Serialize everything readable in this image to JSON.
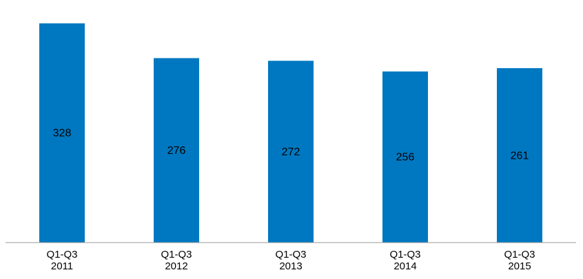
{
  "chart_data": {
    "type": "bar",
    "categories": [
      "Q1-Q3\n2011",
      "Q1-Q3\n2012",
      "Q1-Q3\n2013",
      "Q1-Q3\n2014",
      "Q1-Q3\n2015"
    ],
    "values": [
      328,
      276,
      272,
      256,
      261
    ],
    "color": "#0078c1"
  }
}
